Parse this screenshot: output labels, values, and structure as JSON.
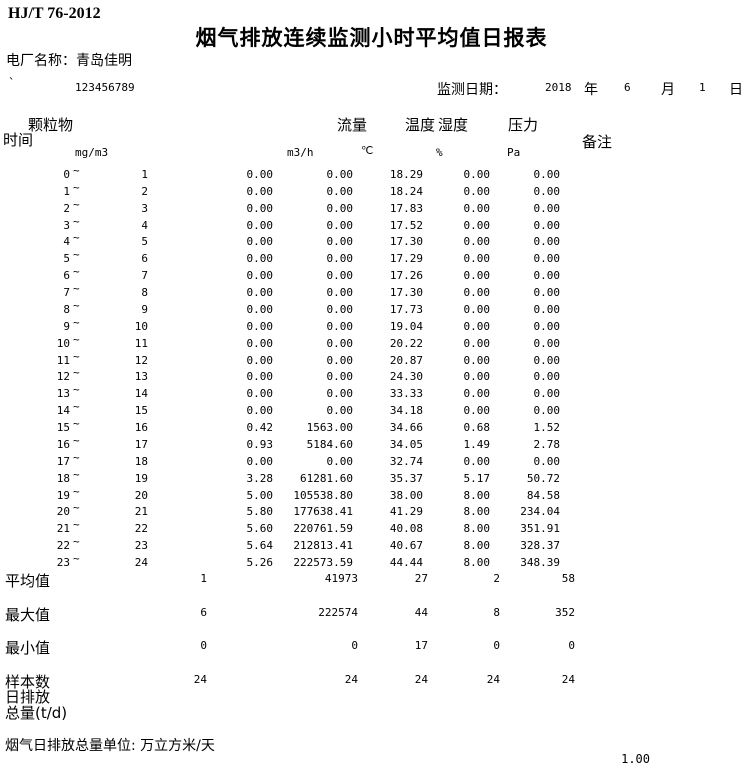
{
  "meta": {
    "standard": "HJ/T 76-2012",
    "title": "烟气排放连续监测小时平均值日报表",
    "plant_label": "电厂名称：",
    "plant_name": "青岛佳明",
    "serial_prefix": "`",
    "serial": "123456789",
    "date_label": "监测日期：",
    "date_year": "2018",
    "year_unit": "年",
    "date_month": "6",
    "month_unit": "月",
    "date_day": "1",
    "day_unit": "日"
  },
  "table": {
    "tilde": "~",
    "headers": {
      "pm": "颗粒物",
      "time": "时间",
      "flow": "流量",
      "temp": "温度",
      "humidity": "湿度",
      "pressure": "压力",
      "remark": "备注"
    },
    "units": {
      "pm": "mg/m3",
      "flow": "m3/h",
      "temp": "℃",
      "humidity": "%",
      "pressure": "Pa"
    },
    "rows": [
      {
        "start": "0",
        "end": "1",
        "pm": "0.00",
        "flow": "0.00",
        "temp": "18.29",
        "humidity": "0.00",
        "pressure": "0.00"
      },
      {
        "start": "1",
        "end": "2",
        "pm": "0.00",
        "flow": "0.00",
        "temp": "18.24",
        "humidity": "0.00",
        "pressure": "0.00"
      },
      {
        "start": "2",
        "end": "3",
        "pm": "0.00",
        "flow": "0.00",
        "temp": "17.83",
        "humidity": "0.00",
        "pressure": "0.00"
      },
      {
        "start": "3",
        "end": "4",
        "pm": "0.00",
        "flow": "0.00",
        "temp": "17.52",
        "humidity": "0.00",
        "pressure": "0.00"
      },
      {
        "start": "4",
        "end": "5",
        "pm": "0.00",
        "flow": "0.00",
        "temp": "17.30",
        "humidity": "0.00",
        "pressure": "0.00"
      },
      {
        "start": "5",
        "end": "6",
        "pm": "0.00",
        "flow": "0.00",
        "temp": "17.29",
        "humidity": "0.00",
        "pressure": "0.00"
      },
      {
        "start": "6",
        "end": "7",
        "pm": "0.00",
        "flow": "0.00",
        "temp": "17.26",
        "humidity": "0.00",
        "pressure": "0.00"
      },
      {
        "start": "7",
        "end": "8",
        "pm": "0.00",
        "flow": "0.00",
        "temp": "17.30",
        "humidity": "0.00",
        "pressure": "0.00"
      },
      {
        "start": "8",
        "end": "9",
        "pm": "0.00",
        "flow": "0.00",
        "temp": "17.73",
        "humidity": "0.00",
        "pressure": "0.00"
      },
      {
        "start": "9",
        "end": "10",
        "pm": "0.00",
        "flow": "0.00",
        "temp": "19.04",
        "humidity": "0.00",
        "pressure": "0.00"
      },
      {
        "start": "10",
        "end": "11",
        "pm": "0.00",
        "flow": "0.00",
        "temp": "20.22",
        "humidity": "0.00",
        "pressure": "0.00"
      },
      {
        "start": "11",
        "end": "12",
        "pm": "0.00",
        "flow": "0.00",
        "temp": "20.87",
        "humidity": "0.00",
        "pressure": "0.00"
      },
      {
        "start": "12",
        "end": "13",
        "pm": "0.00",
        "flow": "0.00",
        "temp": "24.30",
        "humidity": "0.00",
        "pressure": "0.00"
      },
      {
        "start": "13",
        "end": "14",
        "pm": "0.00",
        "flow": "0.00",
        "temp": "33.33",
        "humidity": "0.00",
        "pressure": "0.00"
      },
      {
        "start": "14",
        "end": "15",
        "pm": "0.00",
        "flow": "0.00",
        "temp": "34.18",
        "humidity": "0.00",
        "pressure": "0.00"
      },
      {
        "start": "15",
        "end": "16",
        "pm": "0.42",
        "flow": "1563.00",
        "temp": "34.66",
        "humidity": "0.68",
        "pressure": "1.52"
      },
      {
        "start": "16",
        "end": "17",
        "pm": "0.93",
        "flow": "5184.60",
        "temp": "34.05",
        "humidity": "1.49",
        "pressure": "2.78"
      },
      {
        "start": "17",
        "end": "18",
        "pm": "0.00",
        "flow": "0.00",
        "temp": "32.74",
        "humidity": "0.00",
        "pressure": "0.00"
      },
      {
        "start": "18",
        "end": "19",
        "pm": "3.28",
        "flow": "61281.60",
        "temp": "35.37",
        "humidity": "5.17",
        "pressure": "50.72"
      },
      {
        "start": "19",
        "end": "20",
        "pm": "5.00",
        "flow": "105538.80",
        "temp": "38.00",
        "humidity": "8.00",
        "pressure": "84.58"
      },
      {
        "start": "20",
        "end": "21",
        "pm": "5.80",
        "flow": "177638.41",
        "temp": "41.29",
        "humidity": "8.00",
        "pressure": "234.04"
      },
      {
        "start": "21",
        "end": "22",
        "pm": "5.60",
        "flow": "220761.59",
        "temp": "40.08",
        "humidity": "8.00",
        "pressure": "351.91"
      },
      {
        "start": "22",
        "end": "23",
        "pm": "5.64",
        "flow": "212813.41",
        "temp": "40.67",
        "humidity": "8.00",
        "pressure": "328.37"
      },
      {
        "start": "23",
        "end": "24",
        "pm": "5.26",
        "flow": "222573.59",
        "temp": "44.44",
        "humidity": "8.00",
        "pressure": "348.39"
      }
    ],
    "summary": [
      {
        "label": "平均值",
        "values": [
          "1",
          "41973",
          "27",
          "2",
          "58"
        ]
      },
      {
        "label": "最大值",
        "values": [
          "6",
          "222574",
          "44",
          "8",
          "352"
        ]
      },
      {
        "label": "最小值",
        "values": [
          "0",
          "0",
          "17",
          "0",
          "0"
        ]
      },
      {
        "label": "样本数",
        "values": [
          "24",
          "24",
          "24",
          "24",
          "24"
        ]
      }
    ],
    "daily_emission_label_1": "日排放",
    "daily_emission_label_2": "总量(t/d)"
  },
  "footer": {
    "unit_note": "烟气日排放总量单位: 万立方米/天",
    "page_number": "1.00"
  }
}
